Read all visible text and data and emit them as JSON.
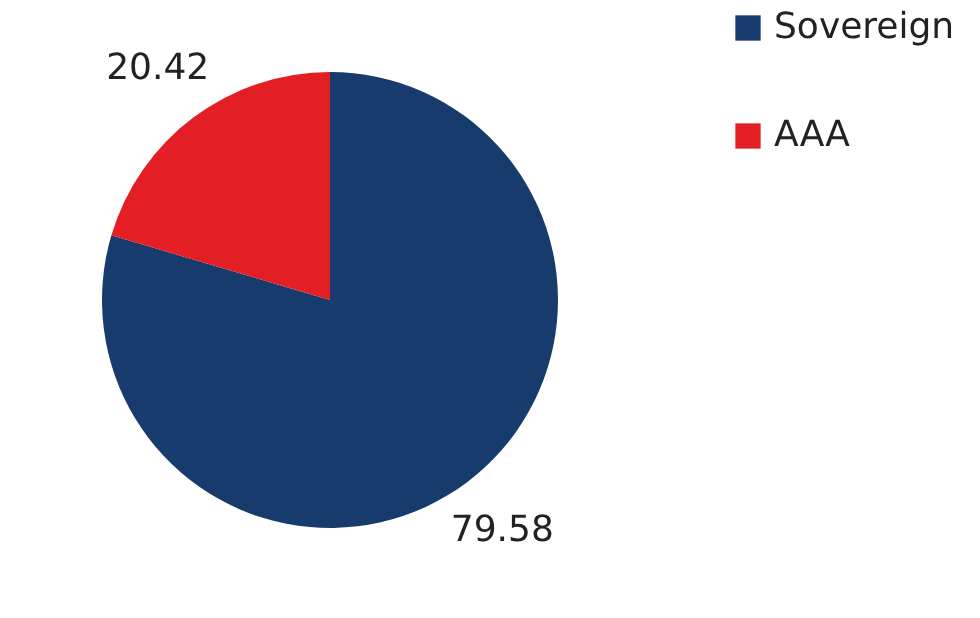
{
  "chart_data": {
    "type": "pie",
    "categories": [
      "Sovereign",
      "AAA"
    ],
    "values": [
      79.58,
      20.42
    ],
    "colors": [
      "#173b6c",
      "#e31e24"
    ],
    "data_labels": true,
    "legend": "right"
  }
}
